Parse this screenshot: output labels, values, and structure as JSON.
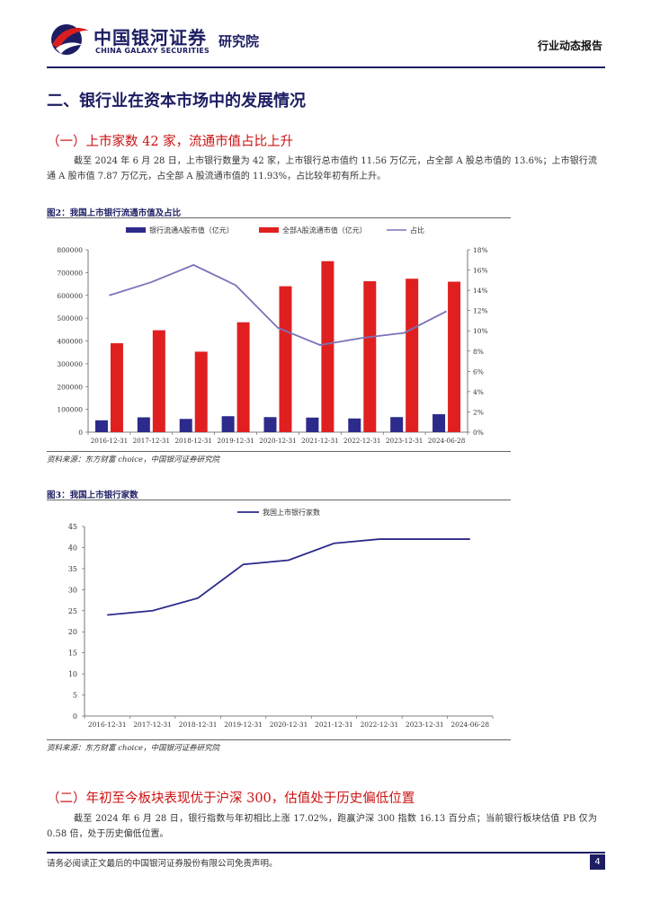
{
  "header": {
    "logo_cn": "中国银河证券",
    "logo_en": "CHINA GALAXY SECURITIES",
    "institute": "研究院",
    "report_type": "行业动态报告"
  },
  "section": {
    "title": "二、银行业在资本市场中的发展情况",
    "sub1": "（一）上市家数 42 家，流通市值占比上升",
    "para1": "截至 2024 年 6 月 28 日，上市银行数量为 42 家，上市银行总市值约 11.56 万亿元，占全部 A 股总市值的 13.6%；上市银行流通 A 股市值 7.87 万亿元，占全部 A 股流通市值的 11.93%，占比较年初有所上升。",
    "sub2": "（二）年初至今板块表现优于沪深 300，估值处于历史偏低位置",
    "para2": "截至 2024 年 6 月 28 日，银行指数与年初相比上涨 17.02%，跑赢沪深 300 指数 16.13 百分点；当前银行板块估值 PB 仅为 0.58 倍，处于历史偏低位置。"
  },
  "figures": {
    "fig2_title": "图2：我国上市银行流通市值及占比",
    "fig2_source": "资料来源：东方财富 choice，中国银河证券研究院",
    "fig3_title": "图3：我国上市银行家数",
    "fig3_source": "资料来源：东方财富 choice，中国银河证券研究院"
  },
  "footer": {
    "note": "请务必阅读正文最后的中国银河证券股份有限公司免责声明。",
    "page": "4"
  },
  "colors": {
    "brand_navy": "#1d1d63",
    "accent_red": "#cc1111",
    "series_navy": "#2c2a8a",
    "series_red": "#e02020",
    "series_purple": "#7a73b8"
  },
  "chart_data": [
    {
      "type": "bar",
      "categories": [
        "2016-12-31",
        "2017-12-31",
        "2018-12-31",
        "2019-12-31",
        "2020-12-31",
        "2021-12-31",
        "2022-12-31",
        "2023-12-31",
        "2024-06-28"
      ],
      "series": [
        {
          "name": "银行流通A股市值（亿元）",
          "type": "bar",
          "axis": "left",
          "color": "#2c2a8a",
          "values": [
            52000,
            65000,
            58000,
            70000,
            66000,
            64000,
            60000,
            66000,
            78700
          ]
        },
        {
          "name": "全部A股流通市值（亿元）",
          "type": "bar",
          "axis": "left",
          "color": "#e02020",
          "values": [
            390000,
            447000,
            353000,
            482000,
            640000,
            750000,
            662000,
            673000,
            660000
          ]
        },
        {
          "name": "占比",
          "type": "line",
          "axis": "right",
          "color": "#7a73b8",
          "values": [
            13.5,
            14.8,
            16.5,
            14.5,
            10.3,
            8.6,
            9.3,
            9.8,
            11.93
          ]
        }
      ],
      "yticks_left": [
        "800000",
        "700000",
        "600000",
        "500000",
        "400000",
        "300000",
        "200000",
        "100000",
        "0"
      ],
      "yticks_right": [
        "18%",
        "16%",
        "14%",
        "12%",
        "10%",
        "8%",
        "6%",
        "4%",
        "2%",
        "0%"
      ],
      "ylim_left": [
        0,
        800000
      ],
      "ylim_right": [
        0,
        18
      ],
      "legend": "top-center",
      "grid": false
    },
    {
      "type": "line",
      "categories": [
        "2016-12-31",
        "2017-12-31",
        "2018-12-31",
        "2019-12-31",
        "2020-12-31",
        "2021-12-31",
        "2022-12-31",
        "2023-12-31",
        "2024-06-28"
      ],
      "series": [
        {
          "name": "我国上市银行家数",
          "color": "#2c2a8a",
          "values": [
            24,
            25,
            28,
            36,
            37,
            41,
            42,
            42,
            42
          ]
        }
      ],
      "yticks": [
        "45",
        "40",
        "35",
        "30",
        "25",
        "20",
        "15",
        "10",
        "5",
        "0"
      ],
      "ylim": [
        0,
        45
      ],
      "legend": "top-center",
      "grid": false
    }
  ]
}
